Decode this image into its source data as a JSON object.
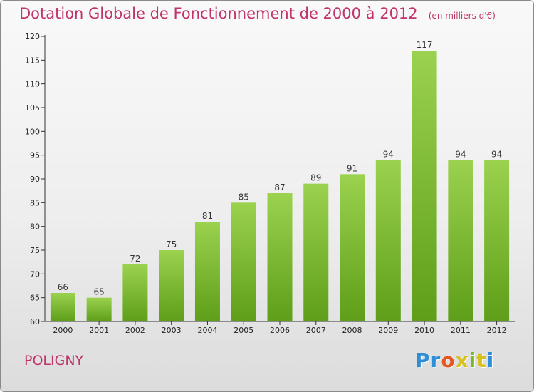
{
  "title": "Dotation Globale de Fonctionnement de 2000 à 2012",
  "unit_note": "(en milliers d'€)",
  "commune": "POLIGNY",
  "brand": {
    "letters": [
      "P",
      "r",
      "o",
      "x",
      "i",
      "t",
      "i"
    ],
    "colors": [
      "#2e8fd8",
      "#2e8fd8",
      "#e8561f",
      "#d6c11d",
      "#7ab829",
      "#d6c11d",
      "#2e8fd8"
    ]
  },
  "colors": {
    "bar_top": "#9bd24f",
    "bar_bottom": "#5e9e19",
    "accent": "#c0336b"
  },
  "chart_data": {
    "type": "bar",
    "title": "Dotation Globale de Fonctionnement de 2000 à 2012",
    "subtitle": "(en milliers d'€)",
    "xlabel": "",
    "ylabel": "",
    "categories": [
      "2000",
      "2001",
      "2002",
      "2003",
      "2004",
      "2005",
      "2006",
      "2007",
      "2008",
      "2009",
      "2010",
      "2011",
      "2012"
    ],
    "values": [
      66,
      65,
      72,
      75,
      81,
      85,
      87,
      89,
      91,
      94,
      117,
      94,
      94
    ],
    "ylim": [
      60,
      120
    ],
    "yticks": [
      60,
      65,
      70,
      75,
      80,
      85,
      90,
      95,
      100,
      105,
      110,
      115,
      120
    ],
    "grid": false,
    "legend": "none"
  }
}
